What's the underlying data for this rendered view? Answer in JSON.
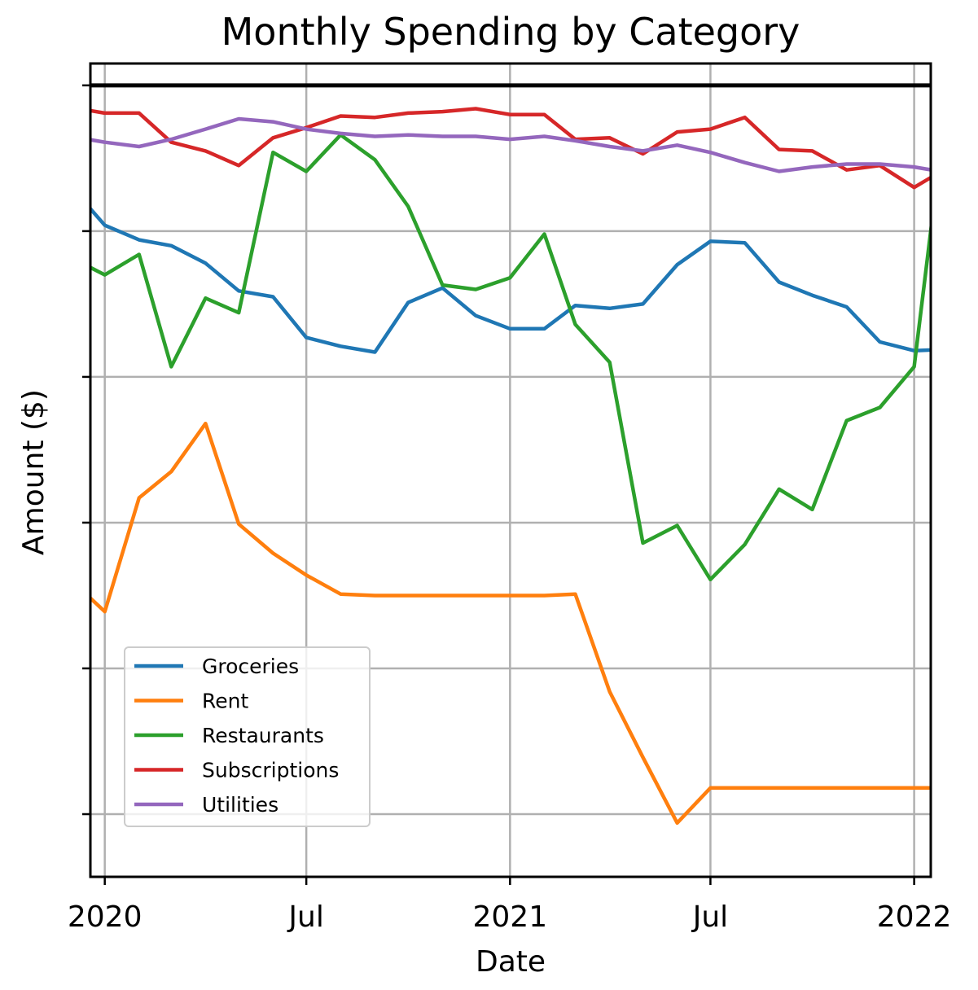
{
  "chart_data": {
    "type": "line",
    "title": "Monthly Spending by Category",
    "xlabel": "Date",
    "ylabel": "Amount ($)",
    "x": [
      "2019-12-01",
      "2020-01-01",
      "2020-02-01",
      "2020-03-01",
      "2020-04-01",
      "2020-05-01",
      "2020-06-01",
      "2020-07-01",
      "2020-08-01",
      "2020-09-01",
      "2020-10-01",
      "2020-11-01",
      "2020-12-01",
      "2021-01-01",
      "2021-02-01",
      "2021-03-01",
      "2021-04-01",
      "2021-05-01",
      "2021-06-01",
      "2021-07-01",
      "2021-08-01",
      "2021-09-01",
      "2021-10-01",
      "2021-11-01",
      "2021-12-01",
      "2022-01-01",
      "2022-02-01"
    ],
    "xlim": [
      "2019-12-19",
      "2022-01-16"
    ],
    "x_ticks": [
      {
        "date": "2020-01-01",
        "label": "2020"
      },
      {
        "date": "2020-07-01",
        "label": "Jul"
      },
      {
        "date": "2021-01-01",
        "label": "2021"
      },
      {
        "date": "2021-07-01",
        "label": "Jul"
      },
      {
        "date": "2022-01-01",
        "label": "2022"
      }
    ],
    "y_ticks": [
      0,
      1,
      2,
      3,
      4,
      5
    ],
    "y_tick_labels_shown": false,
    "ylim": [
      -0.43,
      5.15
    ],
    "grid": true,
    "legend_position": "lower-left",
    "hline": {
      "y": 5.0,
      "color": "#000000"
    },
    "series": [
      {
        "name": "Groceries",
        "color": "#1f77b4",
        "values": [
          4.31,
          4.04,
          3.94,
          3.9,
          3.78,
          3.59,
          3.55,
          3.27,
          3.21,
          3.17,
          3.51,
          3.61,
          3.42,
          3.33,
          3.33,
          3.49,
          3.47,
          3.5,
          3.77,
          3.93,
          3.92,
          3.65,
          3.56,
          3.48,
          3.24,
          3.18,
          3.19
        ]
      },
      {
        "name": "Rent",
        "color": "#ff7f0e",
        "values": [
          1.61,
          1.39,
          2.17,
          2.35,
          2.68,
          1.99,
          1.79,
          1.64,
          1.51,
          1.5,
          1.5,
          1.5,
          1.5,
          1.5,
          1.5,
          1.51,
          0.84,
          0.39,
          -0.06,
          0.18,
          0.18,
          0.18,
          0.18,
          0.18,
          0.18,
          0.18,
          0.18
        ]
      },
      {
        "name": "Restaurants",
        "color": "#2ca02c",
        "values": [
          3.82,
          3.7,
          3.84,
          3.07,
          3.54,
          3.44,
          4.54,
          4.41,
          4.66,
          4.49,
          4.17,
          3.63,
          3.6,
          3.68,
          3.98,
          3.36,
          3.1,
          1.86,
          1.98,
          1.61,
          1.85,
          2.23,
          2.09,
          2.7,
          2.79,
          3.07,
          5.0
        ]
      },
      {
        "name": "Subscriptions",
        "color": "#d62728",
        "values": [
          4.85,
          4.81,
          4.81,
          4.61,
          4.55,
          4.45,
          4.64,
          4.71,
          4.79,
          4.78,
          4.81,
          4.82,
          4.84,
          4.8,
          4.8,
          4.63,
          4.64,
          4.53,
          4.68,
          4.7,
          4.78,
          4.56,
          4.55,
          4.42,
          4.45,
          4.3,
          4.44
        ]
      },
      {
        "name": "Utilities",
        "color": "#9467bd",
        "values": [
          4.65,
          4.61,
          4.58,
          4.63,
          4.7,
          4.77,
          4.75,
          4.7,
          4.67,
          4.65,
          4.66,
          4.65,
          4.65,
          4.63,
          4.65,
          4.62,
          4.58,
          4.55,
          4.59,
          4.54,
          4.47,
          4.41,
          4.44,
          4.46,
          4.46,
          4.44,
          4.4
        ]
      }
    ]
  }
}
